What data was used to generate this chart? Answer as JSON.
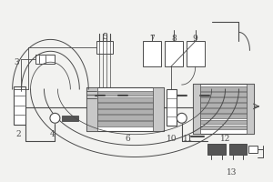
{
  "bg_color": "#f0efed",
  "line_color": "#4a4a4a",
  "gray_fill": "#b0b0b0",
  "light_gray": "#c8c8c8",
  "dark_gray": "#555555",
  "white": "#ffffff",
  "figsize": [
    3.0,
    2.0
  ],
  "dpi": 100
}
